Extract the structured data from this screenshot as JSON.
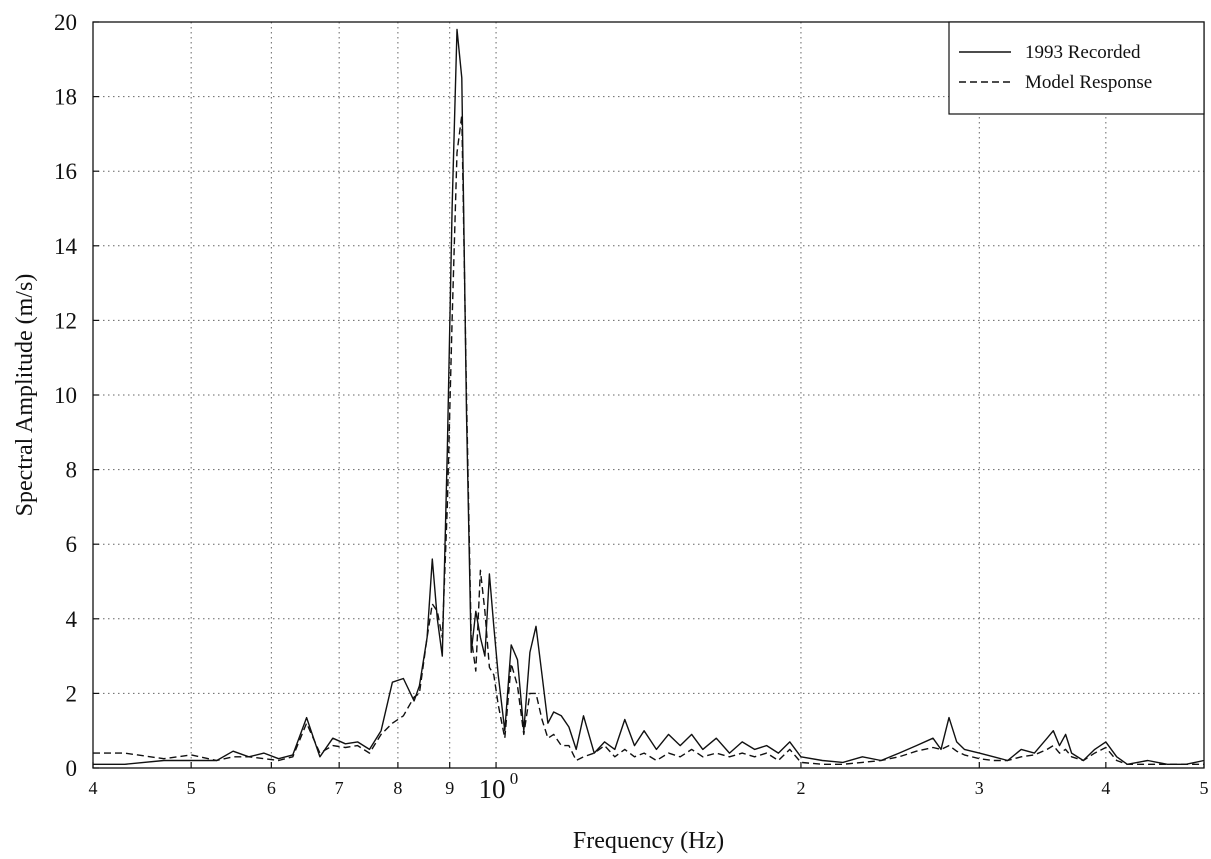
{
  "chart_data": {
    "type": "line",
    "title": "",
    "xlabel": "Frequency (Hz)",
    "ylabel": "Spectral Amplitude (m/s)",
    "x_scale": "log",
    "xlim": [
      0.4,
      5
    ],
    "ylim": [
      0,
      20
    ],
    "grid": true,
    "legend_position": "top-right",
    "x_ticks": [
      {
        "value": 0.4,
        "label": "4",
        "exp": ""
      },
      {
        "value": 0.5,
        "label": "5",
        "exp": ""
      },
      {
        "value": 0.6,
        "label": "6",
        "exp": ""
      },
      {
        "value": 0.7,
        "label": "7",
        "exp": ""
      },
      {
        "value": 0.8,
        "label": "8",
        "exp": ""
      },
      {
        "value": 0.9,
        "label": "9",
        "exp": ""
      },
      {
        "value": 1.0,
        "label": "10",
        "exp": "0"
      },
      {
        "value": 2.0,
        "label": "2",
        "exp": ""
      },
      {
        "value": 3.0,
        "label": "3",
        "exp": ""
      },
      {
        "value": 4.0,
        "label": "4",
        "exp": ""
      },
      {
        "value": 5.0,
        "label": "5",
        "exp": ""
      }
    ],
    "y_ticks": [
      0,
      2,
      4,
      6,
      8,
      10,
      12,
      14,
      16,
      18,
      20
    ],
    "series": [
      {
        "name": "1993 Recorded",
        "style": "solid",
        "color": "#111111",
        "x": [
          0.4,
          0.43,
          0.47,
          0.5,
          0.53,
          0.55,
          0.57,
          0.59,
          0.61,
          0.63,
          0.65,
          0.67,
          0.69,
          0.71,
          0.73,
          0.75,
          0.77,
          0.79,
          0.81,
          0.83,
          0.84,
          0.855,
          0.865,
          0.875,
          0.885,
          0.895,
          0.905,
          0.915,
          0.925,
          0.935,
          0.945,
          0.955,
          0.965,
          0.975,
          0.985,
          0.995,
          1.005,
          1.02,
          1.035,
          1.05,
          1.065,
          1.08,
          1.095,
          1.11,
          1.125,
          1.14,
          1.16,
          1.18,
          1.2,
          1.22,
          1.25,
          1.28,
          1.31,
          1.34,
          1.37,
          1.4,
          1.44,
          1.48,
          1.52,
          1.56,
          1.6,
          1.65,
          1.7,
          1.75,
          1.8,
          1.85,
          1.9,
          1.95,
          2.0,
          2.1,
          2.2,
          2.3,
          2.4,
          2.5,
          2.6,
          2.7,
          2.75,
          2.8,
          2.85,
          2.9,
          3.0,
          3.1,
          3.2,
          3.3,
          3.4,
          3.5,
          3.55,
          3.6,
          3.65,
          3.7,
          3.8,
          3.9,
          4.0,
          4.1,
          4.2,
          4.4,
          4.6,
          4.8,
          5.0
        ],
        "y": [
          0.1,
          0.1,
          0.2,
          0.2,
          0.2,
          0.45,
          0.3,
          0.4,
          0.25,
          0.35,
          1.35,
          0.3,
          0.8,
          0.65,
          0.7,
          0.5,
          1.0,
          2.3,
          2.4,
          1.8,
          2.2,
          3.5,
          5.6,
          4.0,
          3.0,
          8.5,
          15.0,
          19.8,
          18.5,
          9.5,
          3.1,
          4.2,
          3.5,
          3.0,
          5.2,
          3.8,
          2.5,
          1.0,
          3.3,
          2.9,
          1.0,
          3.1,
          3.8,
          2.5,
          1.2,
          1.5,
          1.4,
          1.1,
          0.5,
          1.4,
          0.4,
          0.7,
          0.5,
          1.3,
          0.6,
          1.0,
          0.5,
          0.9,
          0.6,
          0.9,
          0.5,
          0.8,
          0.4,
          0.7,
          0.5,
          0.6,
          0.4,
          0.7,
          0.3,
          0.2,
          0.15,
          0.3,
          0.2,
          0.4,
          0.6,
          0.8,
          0.5,
          1.35,
          0.7,
          0.5,
          0.4,
          0.3,
          0.2,
          0.5,
          0.4,
          0.8,
          1.0,
          0.6,
          0.9,
          0.4,
          0.2,
          0.5,
          0.7,
          0.3,
          0.1,
          0.2,
          0.1,
          0.1,
          0.2
        ]
      },
      {
        "name": "Model Response",
        "style": "dashed",
        "color": "#111111",
        "x": [
          0.4,
          0.43,
          0.47,
          0.5,
          0.53,
          0.55,
          0.57,
          0.59,
          0.61,
          0.63,
          0.65,
          0.67,
          0.69,
          0.71,
          0.73,
          0.75,
          0.77,
          0.79,
          0.81,
          0.83,
          0.84,
          0.855,
          0.865,
          0.875,
          0.885,
          0.895,
          0.905,
          0.915,
          0.925,
          0.935,
          0.945,
          0.955,
          0.965,
          0.975,
          0.985,
          0.995,
          1.005,
          1.02,
          1.035,
          1.05,
          1.065,
          1.08,
          1.095,
          1.11,
          1.125,
          1.14,
          1.16,
          1.18,
          1.2,
          1.22,
          1.25,
          1.28,
          1.31,
          1.34,
          1.37,
          1.4,
          1.44,
          1.48,
          1.52,
          1.56,
          1.6,
          1.65,
          1.7,
          1.75,
          1.8,
          1.85,
          1.9,
          1.95,
          2.0,
          2.1,
          2.2,
          2.3,
          2.4,
          2.5,
          2.6,
          2.7,
          2.75,
          2.8,
          2.85,
          2.9,
          3.0,
          3.1,
          3.2,
          3.3,
          3.4,
          3.5,
          3.55,
          3.6,
          3.65,
          3.7,
          3.8,
          3.9,
          4.0,
          4.1,
          4.2,
          4.4,
          4.6,
          4.8,
          5.0
        ],
        "y": [
          0.4,
          0.4,
          0.25,
          0.35,
          0.2,
          0.3,
          0.3,
          0.25,
          0.2,
          0.3,
          1.2,
          0.4,
          0.6,
          0.55,
          0.6,
          0.4,
          0.9,
          1.2,
          1.4,
          1.9,
          2.0,
          3.5,
          4.4,
          4.2,
          3.5,
          7.0,
          12.0,
          16.5,
          17.5,
          10.0,
          3.5,
          2.6,
          5.3,
          4.2,
          2.7,
          2.5,
          1.7,
          0.8,
          2.8,
          2.2,
          0.9,
          2.0,
          2.0,
          1.3,
          0.8,
          0.9,
          0.6,
          0.6,
          0.2,
          0.3,
          0.4,
          0.6,
          0.3,
          0.5,
          0.3,
          0.4,
          0.2,
          0.4,
          0.3,
          0.5,
          0.3,
          0.4,
          0.3,
          0.4,
          0.3,
          0.4,
          0.2,
          0.5,
          0.15,
          0.1,
          0.1,
          0.15,
          0.2,
          0.3,
          0.45,
          0.55,
          0.5,
          0.6,
          0.45,
          0.35,
          0.25,
          0.2,
          0.2,
          0.3,
          0.35,
          0.5,
          0.6,
          0.4,
          0.5,
          0.3,
          0.2,
          0.4,
          0.55,
          0.2,
          0.1,
          0.1,
          0.1,
          0.1,
          0.1
        ]
      }
    ]
  }
}
